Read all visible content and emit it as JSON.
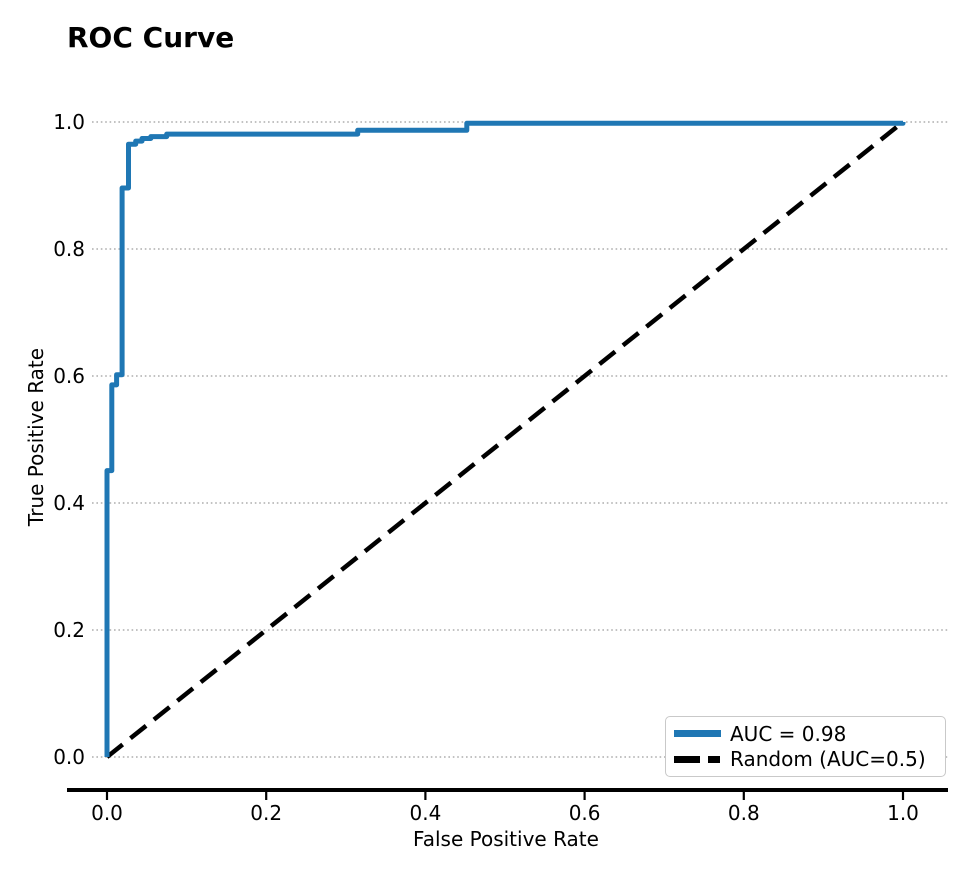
{
  "chart_data": {
    "type": "line",
    "title": "ROC Curve",
    "xlabel": "False Positive Rate",
    "ylabel": "True Positive Rate",
    "xlim": [
      0.0,
      1.0
    ],
    "ylim": [
      0.0,
      1.0
    ],
    "xticks": [
      "0.0",
      "0.2",
      "0.4",
      "0.6",
      "0.8",
      "1.0"
    ],
    "yticks": [
      "0.0",
      "0.2",
      "0.4",
      "0.6",
      "0.8",
      "1.0"
    ],
    "grid": {
      "horizontal": true,
      "vertical": false,
      "style": "dotted",
      "color": "#adadad"
    },
    "legend_position": "lower right",
    "series": [
      {
        "name": "AUC = 0.98",
        "auc": 0.98,
        "style": "solid",
        "color": "#1f77b4",
        "points": [
          [
            0.0,
            0.0
          ],
          [
            0.0,
            0.451
          ],
          [
            0.006,
            0.451
          ],
          [
            0.006,
            0.586
          ],
          [
            0.012,
            0.586
          ],
          [
            0.012,
            0.602
          ],
          [
            0.019,
            0.602
          ],
          [
            0.019,
            0.896
          ],
          [
            0.027,
            0.896
          ],
          [
            0.027,
            0.965
          ],
          [
            0.036,
            0.965
          ],
          [
            0.036,
            0.97
          ],
          [
            0.044,
            0.97
          ],
          [
            0.044,
            0.974
          ],
          [
            0.055,
            0.974
          ],
          [
            0.055,
            0.977
          ],
          [
            0.075,
            0.977
          ],
          [
            0.075,
            0.981
          ],
          [
            0.315,
            0.981
          ],
          [
            0.315,
            0.987
          ],
          [
            0.452,
            0.987
          ],
          [
            0.452,
            0.998
          ],
          [
            1.0,
            0.998
          ],
          [
            1.0,
            1.0
          ]
        ]
      },
      {
        "name": "Random (AUC=0.5)",
        "auc": 0.5,
        "style": "dashed",
        "color": "#000000",
        "points": [
          [
            0.0,
            0.0
          ],
          [
            1.0,
            1.0
          ]
        ]
      }
    ]
  },
  "colors": {
    "curve": "#1f77b4",
    "diagonal": "#000000",
    "grid": "#adadad",
    "spine": "#000000",
    "legend_border": "#c9c9c9",
    "background": "#ffffff"
  }
}
